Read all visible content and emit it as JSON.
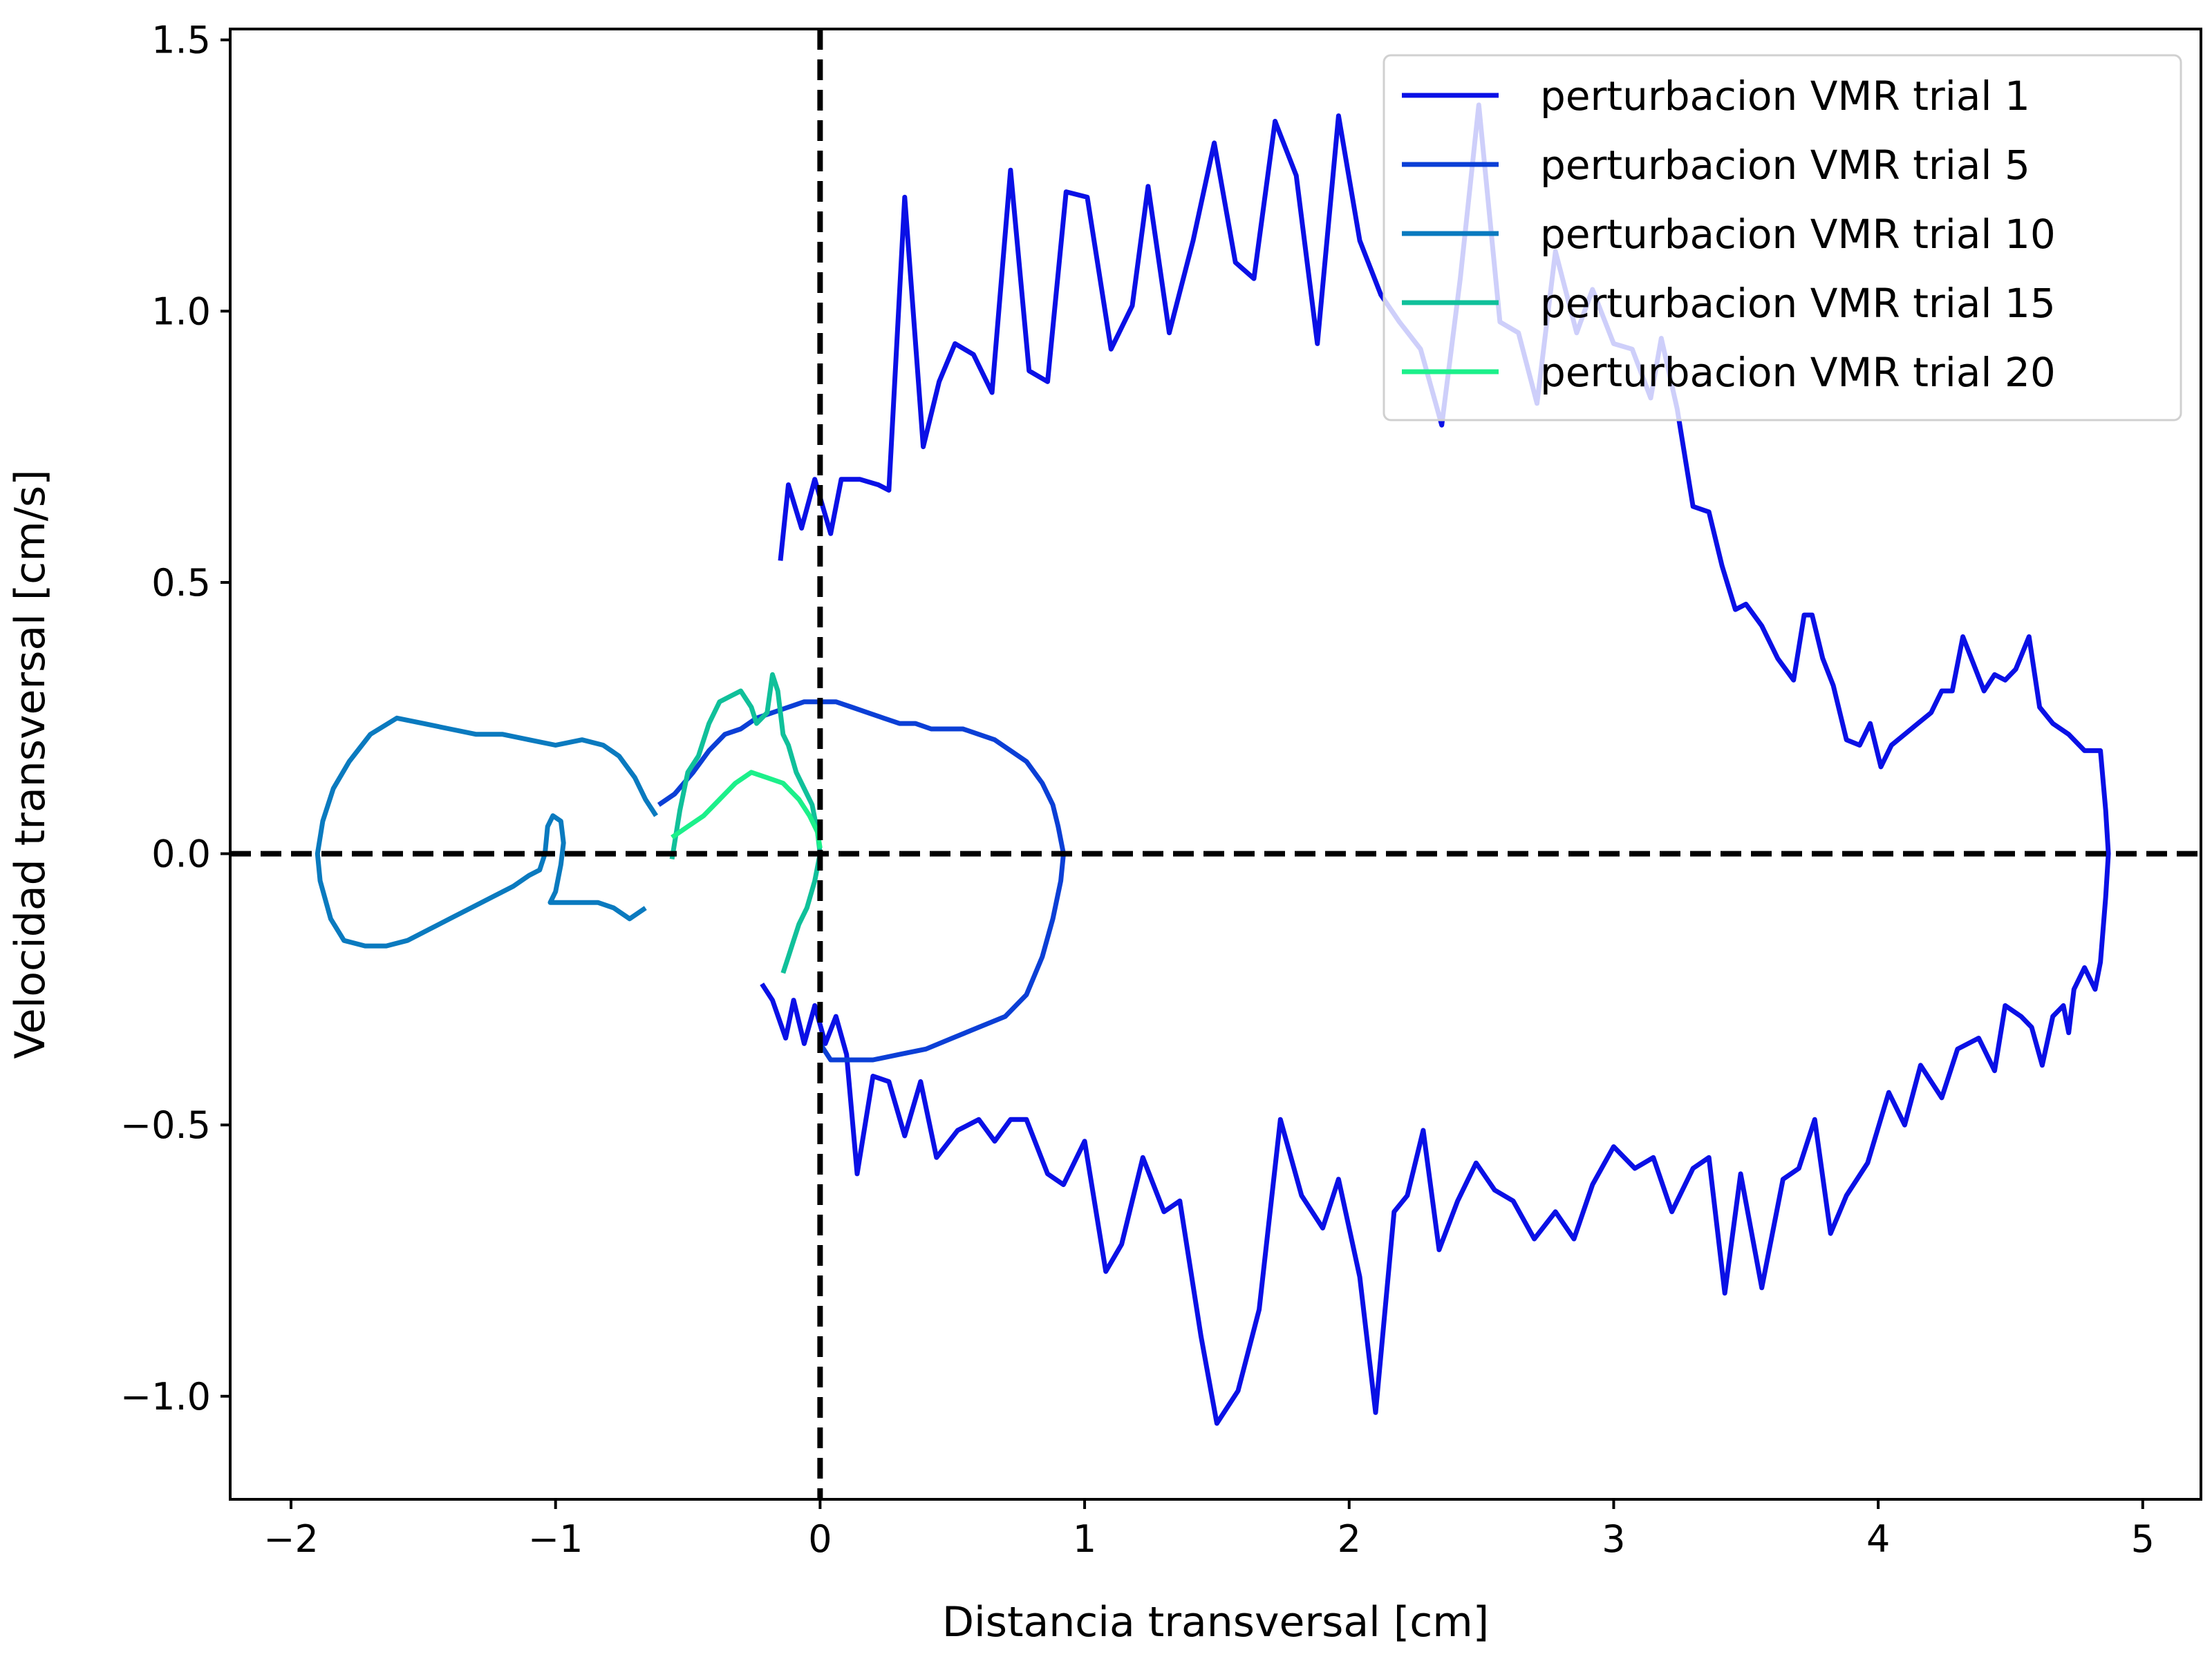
{
  "chart_data": {
    "type": "line",
    "title": "",
    "xlabel": "Distancia transversal [cm]",
    "ylabel": "Velocidad transversal [cm/s]",
    "xlim": [
      -2.23,
      5.22
    ],
    "ylim": [
      -1.19,
      1.52
    ],
    "x_ticks": [
      -2,
      -1,
      0,
      1,
      2,
      3,
      4,
      5
    ],
    "y_ticks": [
      -1.0,
      -0.5,
      0.0,
      0.5,
      1.0,
      1.5
    ],
    "x_tick_labels": [
      "−2",
      "−1",
      "0",
      "1",
      "2",
      "3",
      "4",
      "5"
    ],
    "y_tick_labels": [
      "−1.0",
      "−0.5",
      "0.0",
      "0.5",
      "1.0",
      "1.5"
    ],
    "reference_lines": [
      {
        "orientation": "vertical",
        "value": 0,
        "style": "dashed",
        "color": "#000000"
      },
      {
        "orientation": "horizontal",
        "value": 0,
        "style": "dashed",
        "color": "#000000"
      }
    ],
    "grid": false,
    "legend_position": "top-right",
    "series": [
      {
        "name": "perturbacion VMR trial 1",
        "color": "#0a10e6",
        "points": [
          [
            -0.15,
            0.54
          ],
          [
            -0.12,
            0.68
          ],
          [
            -0.07,
            0.6
          ],
          [
            -0.02,
            0.69
          ],
          [
            0.04,
            0.59
          ],
          [
            0.08,
            0.69
          ],
          [
            0.15,
            0.69
          ],
          [
            0.22,
            0.68
          ],
          [
            0.26,
            0.67
          ],
          [
            0.32,
            1.21
          ],
          [
            0.39,
            0.75
          ],
          [
            0.45,
            0.87
          ],
          [
            0.51,
            0.94
          ],
          [
            0.58,
            0.92
          ],
          [
            0.65,
            0.85
          ],
          [
            0.72,
            1.26
          ],
          [
            0.79,
            0.89
          ],
          [
            0.86,
            0.87
          ],
          [
            0.93,
            1.22
          ],
          [
            1.01,
            1.21
          ],
          [
            1.1,
            0.93
          ],
          [
            1.18,
            1.01
          ],
          [
            1.24,
            1.23
          ],
          [
            1.32,
            0.96
          ],
          [
            1.41,
            1.13
          ],
          [
            1.49,
            1.31
          ],
          [
            1.57,
            1.09
          ],
          [
            1.64,
            1.06
          ],
          [
            1.72,
            1.35
          ],
          [
            1.8,
            1.25
          ],
          [
            1.88,
            0.94
          ],
          [
            1.96,
            1.36
          ],
          [
            2.04,
            1.13
          ],
          [
            2.12,
            1.03
          ],
          [
            2.19,
            0.98
          ],
          [
            2.27,
            0.93
          ],
          [
            2.35,
            0.79
          ],
          [
            2.42,
            1.06
          ],
          [
            2.49,
            1.38
          ],
          [
            2.57,
            0.98
          ],
          [
            2.64,
            0.96
          ],
          [
            2.71,
            0.83
          ],
          [
            2.78,
            1.11
          ],
          [
            2.86,
            0.96
          ],
          [
            2.92,
            1.04
          ],
          [
            3.0,
            0.94
          ],
          [
            3.07,
            0.93
          ],
          [
            3.14,
            0.84
          ],
          [
            3.18,
            0.95
          ],
          [
            3.24,
            0.82
          ],
          [
            3.3,
            0.64
          ],
          [
            3.36,
            0.63
          ],
          [
            3.41,
            0.53
          ],
          [
            3.46,
            0.45
          ],
          [
            3.5,
            0.46
          ],
          [
            3.56,
            0.42
          ],
          [
            3.62,
            0.36
          ],
          [
            3.68,
            0.32
          ],
          [
            3.72,
            0.44
          ],
          [
            3.75,
            0.44
          ],
          [
            3.79,
            0.36
          ],
          [
            3.83,
            0.31
          ],
          [
            3.88,
            0.21
          ],
          [
            3.93,
            0.2
          ],
          [
            3.97,
            0.24
          ],
          [
            4.01,
            0.16
          ],
          [
            4.05,
            0.2
          ],
          [
            4.1,
            0.22
          ],
          [
            4.15,
            0.24
          ],
          [
            4.2,
            0.26
          ],
          [
            4.24,
            0.3
          ],
          [
            4.28,
            0.3
          ],
          [
            4.32,
            0.4
          ],
          [
            4.36,
            0.35
          ],
          [
            4.4,
            0.3
          ],
          [
            4.44,
            0.33
          ],
          [
            4.48,
            0.32
          ],
          [
            4.52,
            0.34
          ],
          [
            4.57,
            0.4
          ],
          [
            4.61,
            0.27
          ],
          [
            4.66,
            0.24
          ],
          [
            4.72,
            0.22
          ],
          [
            4.78,
            0.19
          ],
          [
            4.84,
            0.19
          ],
          [
            4.86,
            0.08
          ],
          [
            4.87,
            0.0
          ],
          [
            4.86,
            -0.08
          ],
          [
            4.84,
            -0.2
          ],
          [
            4.82,
            -0.25
          ],
          [
            4.78,
            -0.21
          ],
          [
            4.74,
            -0.25
          ],
          [
            4.72,
            -0.33
          ],
          [
            4.7,
            -0.28
          ],
          [
            4.66,
            -0.3
          ],
          [
            4.62,
            -0.39
          ],
          [
            4.58,
            -0.32
          ],
          [
            4.54,
            -0.3
          ],
          [
            4.48,
            -0.28
          ],
          [
            4.44,
            -0.4
          ],
          [
            4.38,
            -0.34
          ],
          [
            4.3,
            -0.36
          ],
          [
            4.24,
            -0.45
          ],
          [
            4.16,
            -0.39
          ],
          [
            4.1,
            -0.5
          ],
          [
            4.04,
            -0.44
          ],
          [
            3.96,
            -0.57
          ],
          [
            3.88,
            -0.63
          ],
          [
            3.82,
            -0.7
          ],
          [
            3.76,
            -0.49
          ],
          [
            3.7,
            -0.58
          ],
          [
            3.64,
            -0.6
          ],
          [
            3.56,
            -0.8
          ],
          [
            3.48,
            -0.59
          ],
          [
            3.42,
            -0.81
          ],
          [
            3.36,
            -0.56
          ],
          [
            3.3,
            -0.58
          ],
          [
            3.22,
            -0.66
          ],
          [
            3.15,
            -0.56
          ],
          [
            3.08,
            -0.58
          ],
          [
            3.0,
            -0.54
          ],
          [
            2.92,
            -0.61
          ],
          [
            2.85,
            -0.71
          ],
          [
            2.78,
            -0.66
          ],
          [
            2.7,
            -0.71
          ],
          [
            2.62,
            -0.64
          ],
          [
            2.55,
            -0.62
          ],
          [
            2.48,
            -0.57
          ],
          [
            2.41,
            -0.64
          ],
          [
            2.34,
            -0.73
          ],
          [
            2.28,
            -0.51
          ],
          [
            2.22,
            -0.63
          ],
          [
            2.17,
            -0.66
          ],
          [
            2.1,
            -1.03
          ],
          [
            2.04,
            -0.78
          ],
          [
            1.96,
            -0.6
          ],
          [
            1.9,
            -0.69
          ],
          [
            1.82,
            -0.63
          ],
          [
            1.74,
            -0.49
          ],
          [
            1.66,
            -0.84
          ],
          [
            1.58,
            -0.99
          ],
          [
            1.5,
            -1.05
          ],
          [
            1.44,
            -0.89
          ],
          [
            1.36,
            -0.64
          ],
          [
            1.3,
            -0.66
          ],
          [
            1.22,
            -0.56
          ],
          [
            1.14,
            -0.72
          ],
          [
            1.08,
            -0.77
          ],
          [
            1.0,
            -0.53
          ],
          [
            0.92,
            -0.61
          ],
          [
            0.86,
            -0.59
          ],
          [
            0.78,
            -0.49
          ],
          [
            0.72,
            -0.49
          ],
          [
            0.66,
            -0.53
          ],
          [
            0.6,
            -0.49
          ],
          [
            0.52,
            -0.51
          ],
          [
            0.44,
            -0.56
          ],
          [
            0.38,
            -0.42
          ],
          [
            0.32,
            -0.52
          ],
          [
            0.26,
            -0.42
          ],
          [
            0.2,
            -0.41
          ],
          [
            0.14,
            -0.59
          ],
          [
            0.1,
            -0.37
          ],
          [
            0.06,
            -0.3
          ],
          [
            0.02,
            -0.35
          ],
          [
            -0.02,
            -0.28
          ],
          [
            -0.06,
            -0.35
          ],
          [
            -0.1,
            -0.27
          ],
          [
            -0.13,
            -0.34
          ],
          [
            -0.18,
            -0.27
          ],
          [
            -0.22,
            -0.24
          ]
        ]
      },
      {
        "name": "perturbacion VMR trial 5",
        "color": "#0b3fd6",
        "points": [
          [
            -0.61,
            0.09
          ],
          [
            -0.55,
            0.11
          ],
          [
            -0.48,
            0.15
          ],
          [
            -0.42,
            0.19
          ],
          [
            -0.36,
            0.22
          ],
          [
            -0.3,
            0.23
          ],
          [
            -0.24,
            0.25
          ],
          [
            -0.18,
            0.26
          ],
          [
            -0.12,
            0.27
          ],
          [
            -0.06,
            0.28
          ],
          [
            0.0,
            0.28
          ],
          [
            0.06,
            0.28
          ],
          [
            0.12,
            0.27
          ],
          [
            0.18,
            0.26
          ],
          [
            0.24,
            0.25
          ],
          [
            0.3,
            0.24
          ],
          [
            0.36,
            0.24
          ],
          [
            0.42,
            0.23
          ],
          [
            0.48,
            0.23
          ],
          [
            0.54,
            0.23
          ],
          [
            0.6,
            0.22
          ],
          [
            0.66,
            0.21
          ],
          [
            0.72,
            0.19
          ],
          [
            0.78,
            0.17
          ],
          [
            0.84,
            0.13
          ],
          [
            0.88,
            0.09
          ],
          [
            0.9,
            0.05
          ],
          [
            0.92,
            0.0
          ],
          [
            0.91,
            -0.05
          ],
          [
            0.88,
            -0.12
          ],
          [
            0.84,
            -0.19
          ],
          [
            0.78,
            -0.26
          ],
          [
            0.7,
            -0.3
          ],
          [
            0.6,
            -0.32
          ],
          [
            0.5,
            -0.34
          ],
          [
            0.4,
            -0.36
          ],
          [
            0.3,
            -0.37
          ],
          [
            0.2,
            -0.38
          ],
          [
            0.1,
            -0.38
          ],
          [
            0.04,
            -0.38
          ],
          [
            0.0,
            -0.35
          ]
        ]
      },
      {
        "name": "perturbacion VMR trial 10",
        "color": "#0a7abf",
        "points": [
          [
            -0.62,
            0.07
          ],
          [
            -0.66,
            0.1
          ],
          [
            -0.7,
            0.14
          ],
          [
            -0.76,
            0.18
          ],
          [
            -0.82,
            0.2
          ],
          [
            -0.9,
            0.21
          ],
          [
            -1.0,
            0.2
          ],
          [
            -1.1,
            0.21
          ],
          [
            -1.2,
            0.22
          ],
          [
            -1.3,
            0.22
          ],
          [
            -1.4,
            0.23
          ],
          [
            -1.5,
            0.24
          ],
          [
            -1.6,
            0.25
          ],
          [
            -1.7,
            0.22
          ],
          [
            -1.78,
            0.17
          ],
          [
            -1.84,
            0.12
          ],
          [
            -1.88,
            0.06
          ],
          [
            -1.9,
            0.0
          ],
          [
            -1.89,
            -0.05
          ],
          [
            -1.85,
            -0.12
          ],
          [
            -1.8,
            -0.16
          ],
          [
            -1.72,
            -0.17
          ],
          [
            -1.64,
            -0.17
          ],
          [
            -1.56,
            -0.16
          ],
          [
            -1.48,
            -0.14
          ],
          [
            -1.4,
            -0.12
          ],
          [
            -1.32,
            -0.1
          ],
          [
            -1.24,
            -0.08
          ],
          [
            -1.16,
            -0.06
          ],
          [
            -1.1,
            -0.04
          ],
          [
            -1.06,
            -0.03
          ],
          [
            -1.04,
            0.0
          ],
          [
            -1.03,
            0.05
          ],
          [
            -1.01,
            0.07
          ],
          [
            -0.98,
            0.06
          ],
          [
            -0.97,
            0.02
          ],
          [
            -0.98,
            -0.02
          ],
          [
            -1.0,
            -0.07
          ],
          [
            -1.02,
            -0.09
          ],
          [
            -0.96,
            -0.09
          ],
          [
            -0.9,
            -0.09
          ],
          [
            -0.84,
            -0.09
          ],
          [
            -0.78,
            -0.1
          ],
          [
            -0.72,
            -0.12
          ],
          [
            -0.66,
            -0.1
          ]
        ]
      },
      {
        "name": "perturbacion VMR trial 15",
        "color": "#10c09a",
        "points": [
          [
            -0.56,
            -0.01
          ],
          [
            -0.53,
            0.08
          ],
          [
            -0.5,
            0.15
          ],
          [
            -0.46,
            0.18
          ],
          [
            -0.42,
            0.24
          ],
          [
            -0.38,
            0.28
          ],
          [
            -0.34,
            0.29
          ],
          [
            -0.3,
            0.3
          ],
          [
            -0.26,
            0.27
          ],
          [
            -0.24,
            0.24
          ],
          [
            -0.2,
            0.26
          ],
          [
            -0.18,
            0.33
          ],
          [
            -0.16,
            0.3
          ],
          [
            -0.14,
            0.22
          ],
          [
            -0.12,
            0.2
          ],
          [
            -0.09,
            0.15
          ],
          [
            -0.06,
            0.12
          ],
          [
            -0.03,
            0.09
          ],
          [
            -0.01,
            0.04
          ],
          [
            0.0,
            0.0
          ],
          [
            -0.02,
            -0.05
          ],
          [
            -0.05,
            -0.1
          ],
          [
            -0.08,
            -0.13
          ],
          [
            -0.1,
            -0.16
          ],
          [
            -0.12,
            -0.19
          ],
          [
            -0.14,
            -0.22
          ]
        ]
      },
      {
        "name": "perturbacion VMR trial 20",
        "color": "#1cf08a",
        "points": [
          [
            -0.56,
            0.03
          ],
          [
            -0.5,
            0.05
          ],
          [
            -0.44,
            0.07
          ],
          [
            -0.38,
            0.1
          ],
          [
            -0.32,
            0.13
          ],
          [
            -0.26,
            0.15
          ],
          [
            -0.2,
            0.14
          ],
          [
            -0.14,
            0.13
          ],
          [
            -0.08,
            0.1
          ],
          [
            -0.04,
            0.07
          ],
          [
            -0.01,
            0.04
          ],
          [
            0.0,
            0.01
          ]
        ]
      }
    ]
  }
}
